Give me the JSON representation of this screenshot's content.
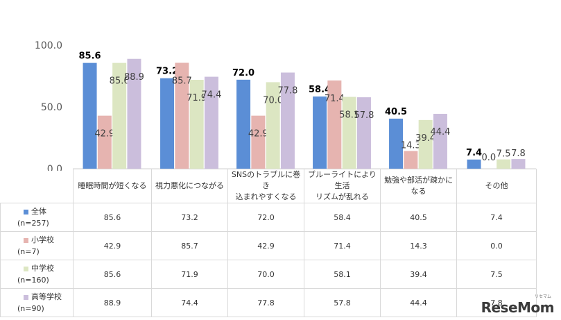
{
  "chart_data": {
    "type": "bar",
    "ylim": [
      0,
      100
    ],
    "yticks": [
      "0.0",
      "50.0",
      "100.0"
    ],
    "categories": [
      [
        "睡眠時間が短くなる"
      ],
      [
        "視力悪化につながる"
      ],
      [
        "SNSのトラブルに巻き",
        "込まれやすくなる"
      ],
      [
        "ブルーライトにより生活",
        "リズムが乱れる"
      ],
      [
        "勉強や部活が疎かに",
        "なる"
      ],
      [
        "その他"
      ]
    ],
    "series": [
      {
        "name": "全体",
        "n": "(n=257)",
        "color": "#5B8ED6",
        "values": [
          85.6,
          73.2,
          72.0,
          58.4,
          40.5,
          7.4
        ],
        "labels": [
          "85.6",
          "73.2",
          "72.0",
          "58.4",
          "40.5",
          "7.4"
        ]
      },
      {
        "name": "小学校",
        "n": "(n=7)",
        "color": "#E6B4B0",
        "values": [
          42.9,
          85.7,
          42.9,
          71.4,
          14.3,
          0.0
        ],
        "labels": [
          "42.9",
          "85.7",
          "42.9",
          "71.4",
          "14.3",
          "0.0"
        ]
      },
      {
        "name": "中学校",
        "n": "(n=160)",
        "color": "#DCE6C2",
        "values": [
          85.6,
          71.9,
          70.0,
          58.1,
          39.4,
          7.5
        ],
        "labels": [
          "85.6",
          "71.9",
          "70.0",
          "58.1",
          "39.4",
          "7.5"
        ]
      },
      {
        "name": "高等学校",
        "n": "(n=90)",
        "color": "#CBBEDC",
        "values": [
          88.9,
          74.4,
          77.8,
          57.8,
          44.4,
          7.8
        ],
        "labels": [
          "88.9",
          "74.4",
          "77.8",
          "57.8",
          "44.4",
          "7.8"
        ]
      }
    ]
  },
  "brand": {
    "logo": "ReseMom",
    "logo_sub": "リセマム"
  }
}
